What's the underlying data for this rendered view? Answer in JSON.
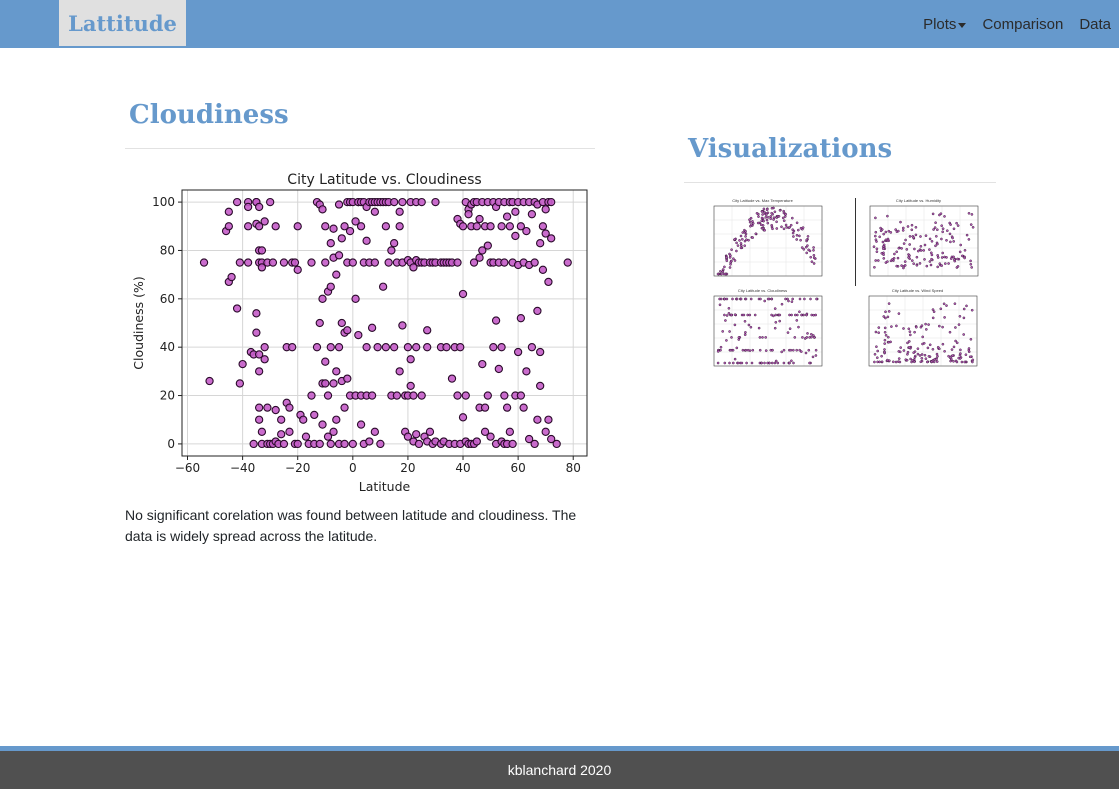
{
  "nav": {
    "brand": "Lattitude",
    "links": [
      "Plots",
      "Comparison",
      "Data"
    ]
  },
  "main": {
    "heading": "Cloudiness",
    "description": "No significant corelation was found between latitude and cloudiness. The data is widely spread across the latitude."
  },
  "side": {
    "heading": "Visualizations",
    "thumbnails": [
      {
        "title": "City Latitude vs. Max Temperature",
        "ylabel": "Max Temperature (F)",
        "xlabel": "Latitude"
      },
      {
        "title": "City Latitude vs. Humidity",
        "ylabel": "Humidity (%)",
        "xlabel": "Latitude"
      },
      {
        "title": "City Latitude vs. Cloudiness",
        "ylabel": "Cloudiness (%)",
        "xlabel": "Latitude"
      },
      {
        "title": "City Latitude vs. Wind Speed",
        "ylabel": "Wind Speed (mph)",
        "xlabel": "Latitude"
      }
    ]
  },
  "footer": {
    "text": "kblanchard 2020"
  },
  "colors": {
    "accent": "#6699cc",
    "marker": "#c45cc8",
    "marker_edge": "#2a0a2a",
    "footer_bg": "#505050"
  },
  "chart_data": {
    "type": "scatter",
    "title": "City Latitude vs. Cloudiness",
    "xlabel": "Latitude",
    "ylabel": "Cloudiness (%)",
    "xlim": [
      -62,
      85
    ],
    "ylim": [
      -5,
      105
    ],
    "xticks": [
      -60,
      -40,
      -20,
      0,
      20,
      40,
      60,
      80
    ],
    "yticks": [
      0,
      20,
      40,
      60,
      80,
      100
    ],
    "grid": true,
    "points": [
      [
        -54,
        75
      ],
      [
        -52,
        26
      ],
      [
        -46,
        88
      ],
      [
        -45,
        96
      ],
      [
        -45,
        90
      ],
      [
        -45,
        67
      ],
      [
        -44,
        69
      ],
      [
        -42,
        100
      ],
      [
        -42,
        56
      ],
      [
        -41,
        75
      ],
      [
        -41,
        25
      ],
      [
        -40,
        33
      ],
      [
        -38,
        100
      ],
      [
        -38,
        98
      ],
      [
        -38,
        90
      ],
      [
        -38,
        75
      ],
      [
        -37,
        38
      ],
      [
        -36,
        37
      ],
      [
        -36,
        0
      ],
      [
        -35,
        100
      ],
      [
        -35,
        100
      ],
      [
        -35,
        91
      ],
      [
        -35,
        54
      ],
      [
        -35,
        46
      ],
      [
        -34,
        98
      ],
      [
        -34,
        90
      ],
      [
        -34,
        80
      ],
      [
        -34,
        75
      ],
      [
        -34,
        37
      ],
      [
        -34,
        30
      ],
      [
        -34,
        15
      ],
      [
        -34,
        10
      ],
      [
        -33,
        80
      ],
      [
        -33,
        75
      ],
      [
        -33,
        73
      ],
      [
        -33,
        5
      ],
      [
        -33,
        0
      ],
      [
        -32,
        92
      ],
      [
        -32,
        40
      ],
      [
        -32,
        35
      ],
      [
        -31,
        75
      ],
      [
        -31,
        15
      ],
      [
        -31,
        0
      ],
      [
        -30,
        100
      ],
      [
        -30,
        0
      ],
      [
        -29,
        75
      ],
      [
        -29,
        0
      ],
      [
        -28,
        90
      ],
      [
        -28,
        14
      ],
      [
        -28,
        1
      ],
      [
        -27,
        0
      ],
      [
        -26,
        10
      ],
      [
        -26,
        4
      ],
      [
        -25,
        75
      ],
      [
        -25,
        0
      ],
      [
        -24,
        17
      ],
      [
        -24,
        40
      ],
      [
        -23,
        15
      ],
      [
        -23,
        5
      ],
      [
        -22,
        75
      ],
      [
        -22,
        40
      ],
      [
        -21,
        75
      ],
      [
        -21,
        0
      ],
      [
        -20,
        90
      ],
      [
        -20,
        72
      ],
      [
        -20,
        0
      ],
      [
        -19,
        12
      ],
      [
        -18,
        10
      ],
      [
        -17,
        3
      ],
      [
        -16,
        0
      ],
      [
        -15,
        75
      ],
      [
        -15,
        20
      ],
      [
        -14,
        12
      ],
      [
        -14,
        0
      ],
      [
        -13,
        100
      ],
      [
        -13,
        40
      ],
      [
        -12,
        99
      ],
      [
        -12,
        50
      ],
      [
        -12,
        0
      ],
      [
        -11,
        97
      ],
      [
        -11,
        60
      ],
      [
        -11,
        25
      ],
      [
        -11,
        8
      ],
      [
        -10,
        90
      ],
      [
        -10,
        75
      ],
      [
        -10,
        34
      ],
      [
        -10,
        25
      ],
      [
        -9,
        63
      ],
      [
        -9,
        20
      ],
      [
        -9,
        3
      ],
      [
        -8,
        83
      ],
      [
        -8,
        65
      ],
      [
        -8,
        40
      ],
      [
        -8,
        0
      ],
      [
        -7,
        89
      ],
      [
        -7,
        77
      ],
      [
        -7,
        25
      ],
      [
        -7,
        5
      ],
      [
        -6,
        70
      ],
      [
        -6,
        30
      ],
      [
        -6,
        10
      ],
      [
        -5,
        99
      ],
      [
        -5,
        78
      ],
      [
        -5,
        40
      ],
      [
        -5,
        0
      ],
      [
        -4,
        85
      ],
      [
        -4,
        50
      ],
      [
        -4,
        26
      ],
      [
        -3,
        90
      ],
      [
        -3,
        46
      ],
      [
        -3,
        15
      ],
      [
        -3,
        0
      ],
      [
        -2,
        100
      ],
      [
        -2,
        75
      ],
      [
        -2,
        47
      ],
      [
        -2,
        27
      ],
      [
        -1,
        100
      ],
      [
        -1,
        88
      ],
      [
        -1,
        20
      ],
      [
        0,
        100
      ],
      [
        0,
        75
      ],
      [
        0,
        0
      ],
      [
        1,
        92
      ],
      [
        1,
        60
      ],
      [
        1,
        20
      ],
      [
        2,
        100
      ],
      [
        2,
        100
      ],
      [
        2,
        45
      ],
      [
        3,
        100
      ],
      [
        3,
        90
      ],
      [
        3,
        20
      ],
      [
        3,
        8
      ],
      [
        4,
        100
      ],
      [
        4,
        75
      ],
      [
        4,
        0
      ],
      [
        5,
        98
      ],
      [
        5,
        84
      ],
      [
        5,
        40
      ],
      [
        5,
        20
      ],
      [
        6,
        100
      ],
      [
        6,
        75
      ],
      [
        6,
        1
      ],
      [
        7,
        100
      ],
      [
        7,
        48
      ],
      [
        7,
        20
      ],
      [
        8,
        100
      ],
      [
        8,
        96
      ],
      [
        8,
        75
      ],
      [
        8,
        5
      ],
      [
        9,
        100
      ],
      [
        9,
        40
      ],
      [
        10,
        100
      ],
      [
        10,
        0
      ],
      [
        11,
        100
      ],
      [
        11,
        65
      ],
      [
        12,
        100
      ],
      [
        12,
        90
      ],
      [
        12,
        40
      ],
      [
        13,
        100
      ],
      [
        13,
        75
      ],
      [
        14,
        80
      ],
      [
        14,
        20
      ],
      [
        15,
        100
      ],
      [
        15,
        83
      ],
      [
        15,
        40
      ],
      [
        16,
        75
      ],
      [
        16,
        20
      ],
      [
        17,
        96
      ],
      [
        17,
        90
      ],
      [
        17,
        30
      ],
      [
        18,
        100
      ],
      [
        18,
        75
      ],
      [
        18,
        49
      ],
      [
        19,
        20
      ],
      [
        19,
        5
      ],
      [
        20,
        76
      ],
      [
        20,
        40
      ],
      [
        20,
        20
      ],
      [
        20,
        3
      ],
      [
        21,
        100
      ],
      [
        21,
        75
      ],
      [
        21,
        35
      ],
      [
        21,
        24
      ],
      [
        22,
        73
      ],
      [
        22,
        20
      ],
      [
        22,
        1
      ],
      [
        23,
        100
      ],
      [
        23,
        76
      ],
      [
        23,
        40
      ],
      [
        23,
        4
      ],
      [
        24,
        75
      ],
      [
        24,
        0
      ],
      [
        25,
        100
      ],
      [
        25,
        75
      ],
      [
        25,
        20
      ],
      [
        26,
        75
      ],
      [
        26,
        3
      ],
      [
        27,
        47
      ],
      [
        27,
        40
      ],
      [
        27,
        1
      ],
      [
        28,
        75
      ],
      [
        28,
        5
      ],
      [
        29,
        75
      ],
      [
        29,
        0
      ],
      [
        30,
        100
      ],
      [
        30,
        75
      ],
      [
        30,
        1
      ],
      [
        32,
        75
      ],
      [
        32,
        40
      ],
      [
        32,
        0
      ],
      [
        33,
        75
      ],
      [
        33,
        1
      ],
      [
        34,
        75
      ],
      [
        34,
        40
      ],
      [
        35,
        75
      ],
      [
        35,
        0
      ],
      [
        36,
        75
      ],
      [
        36,
        27
      ],
      [
        37,
        40
      ],
      [
        37,
        0
      ],
      [
        38,
        93
      ],
      [
        38,
        75
      ],
      [
        38,
        20
      ],
      [
        39,
        91
      ],
      [
        39,
        40
      ],
      [
        39,
        0
      ],
      [
        40,
        90
      ],
      [
        40,
        62
      ],
      [
        40,
        11
      ],
      [
        41,
        100
      ],
      [
        41,
        20
      ],
      [
        41,
        1
      ],
      [
        42,
        97
      ],
      [
        42,
        95
      ],
      [
        42,
        0
      ],
      [
        43,
        99
      ],
      [
        43,
        90
      ],
      [
        43,
        0
      ],
      [
        44,
        100
      ],
      [
        44,
        75
      ],
      [
        44,
        0
      ],
      [
        45,
        100
      ],
      [
        45,
        90
      ],
      [
        45,
        1
      ],
      [
        46,
        93
      ],
      [
        46,
        77
      ],
      [
        46,
        15
      ],
      [
        47,
        100
      ],
      [
        47,
        80
      ],
      [
        47,
        33
      ],
      [
        48,
        90
      ],
      [
        48,
        15
      ],
      [
        48,
        5
      ],
      [
        49,
        100
      ],
      [
        49,
        82
      ],
      [
        49,
        20
      ],
      [
        50,
        90
      ],
      [
        50,
        75
      ],
      [
        50,
        3
      ],
      [
        51,
        100
      ],
      [
        51,
        75
      ],
      [
        51,
        40
      ],
      [
        52,
        98
      ],
      [
        52,
        51
      ],
      [
        52,
        0
      ],
      [
        53,
        100
      ],
      [
        53,
        75
      ],
      [
        53,
        31
      ],
      [
        54,
        90
      ],
      [
        54,
        40
      ],
      [
        54,
        1
      ],
      [
        55,
        100
      ],
      [
        55,
        75
      ],
      [
        55,
        20
      ],
      [
        55,
        0
      ],
      [
        56,
        94
      ],
      [
        56,
        15
      ],
      [
        56,
        0
      ],
      [
        57,
        100
      ],
      [
        57,
        90
      ],
      [
        57,
        5
      ],
      [
        58,
        100
      ],
      [
        58,
        75
      ],
      [
        58,
        0
      ],
      [
        59,
        96
      ],
      [
        59,
        86
      ],
      [
        59,
        20
      ],
      [
        60,
        100
      ],
      [
        60,
        74
      ],
      [
        60,
        38
      ],
      [
        61,
        90
      ],
      [
        61,
        52
      ],
      [
        61,
        20
      ],
      [
        62,
        100
      ],
      [
        62,
        75
      ],
      [
        62,
        15
      ],
      [
        63,
        88
      ],
      [
        63,
        30
      ],
      [
        64,
        100
      ],
      [
        64,
        74
      ],
      [
        64,
        2
      ],
      [
        65,
        95
      ],
      [
        65,
        40
      ],
      [
        66,
        100
      ],
      [
        66,
        75
      ],
      [
        66,
        0
      ],
      [
        67,
        99
      ],
      [
        67,
        55
      ],
      [
        67,
        10
      ],
      [
        68,
        83
      ],
      [
        68,
        38
      ],
      [
        68,
        24
      ],
      [
        69,
        100
      ],
      [
        69,
        90
      ],
      [
        69,
        72
      ],
      [
        70,
        97
      ],
      [
        70,
        87
      ],
      [
        70,
        5
      ],
      [
        71,
        100
      ],
      [
        71,
        67
      ],
      [
        71,
        10
      ],
      [
        72,
        100
      ],
      [
        72,
        85
      ],
      [
        72,
        2
      ],
      [
        74,
        0
      ],
      [
        78,
        75
      ]
    ]
  }
}
